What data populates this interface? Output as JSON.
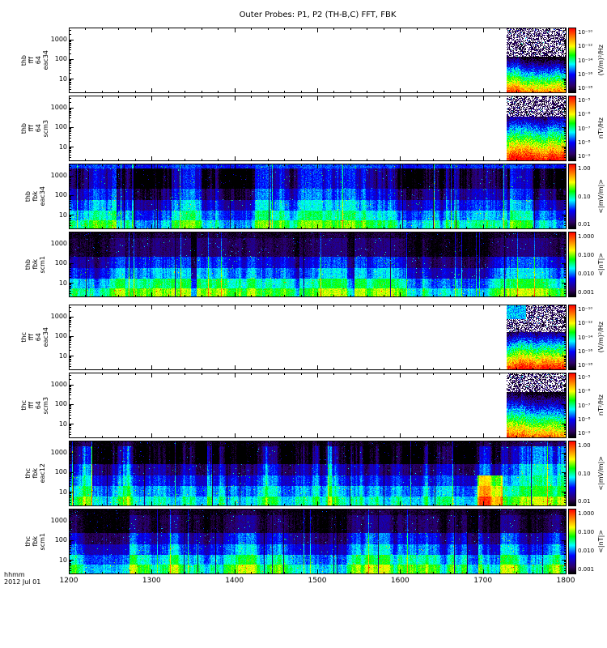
{
  "title": "Outer Probes: P1, P2 (TH-B,C) FFT, FBK",
  "footer": {
    "time_format": "hhmm",
    "date": "2012 Jul 01"
  },
  "background": "#ffffff",
  "x_axis": {
    "ticks": [
      "1200",
      "1300",
      "1400",
      "1500",
      "1600",
      "1700",
      "1800"
    ]
  },
  "y_axis": {
    "ticks": [
      "1000",
      "100",
      "10"
    ],
    "scale": "log",
    "range_hz": [
      2,
      4096
    ]
  },
  "colormap": {
    "description": "rainbow: black-purple-blue-cyan-green-yellow-orange-red, low to high",
    "stops": [
      [
        0.0,
        0,
        0,
        0
      ],
      [
        0.1,
        45,
        0,
        100
      ],
      [
        0.28,
        0,
        0,
        255
      ],
      [
        0.44,
        0,
        255,
        255
      ],
      [
        0.58,
        0,
        255,
        0
      ],
      [
        0.72,
        255,
        255,
        0
      ],
      [
        0.86,
        255,
        127,
        0
      ],
      [
        1.0,
        255,
        0,
        0
      ]
    ]
  },
  "chart_data": {
    "type": "heatmap",
    "title": "Outer Probes: P1, P2 (TH-B,C) FFT, FBK",
    "x_range": [
      "1200",
      "1800"
    ],
    "x_label": "hhmm 2012 Jul 01",
    "y_scale": "log",
    "y_ticks": [
      "1000",
      "100",
      "10"
    ],
    "panels": [
      {
        "name": "thb_fff_64_eac34",
        "label_lines": [
          "thb",
          "fff",
          "64",
          "eac34"
        ],
        "colorbar": {
          "unit": "(V/m)²/Hz",
          "ticks": [
            "10⁻¹⁰",
            "10⁻¹²",
            "10⁻¹⁴",
            "10⁻¹⁶",
            "10⁻¹⁸"
          ]
        },
        "data_coverage": "burst segment only, ~1716-1800; black speckle at high freq, intensity rising to red at lowest freq",
        "render": {
          "kind": "fft",
          "seed": 101,
          "start": 0.88,
          "darkTop": 0.45,
          "patch": false
        }
      },
      {
        "name": "thb_fff_64_scm3",
        "label_lines": [
          "thb",
          "fff",
          "64",
          "scm3"
        ],
        "colorbar": {
          "unit": "nT²/Hz",
          "ticks": [
            "10⁻⁵",
            "10⁻⁶",
            "10⁻⁷",
            "10⁻⁸",
            "10⁻⁹"
          ]
        },
        "data_coverage": "burst segment only, ~1716-1800; layered blue/cyan/green/yellow toward low freq",
        "render": {
          "kind": "fft",
          "seed": 102,
          "start": 0.88,
          "darkTop": 0.32,
          "patch": false
        }
      },
      {
        "name": "thb_fbk_eac34",
        "label_lines": [
          "thb",
          "fbk",
          "eac34"
        ],
        "colorbar": {
          "unit": "<|mV/m|>",
          "ticks": [
            "1.00",
            "0.10",
            "0.01"
          ]
        },
        "data_coverage": "full 1200-1800; solid blue top band, dark striped mid bands, green/yellow low band",
        "render": {
          "kind": "fbk",
          "seed": 303,
          "bands": [
            {
              "h": 0.07,
              "v": 0.3,
              "s": 0.04
            },
            {
              "h": 0.31,
              "v": 0.09,
              "s": 0.22
            },
            {
              "h": 0.17,
              "v": 0.2,
              "s": 0.18
            },
            {
              "h": 0.16,
              "v": 0.3,
              "s": 0.16
            },
            {
              "h": 0.15,
              "v": 0.4,
              "s": 0.14
            },
            {
              "h": 0.14,
              "v": 0.5,
              "s": 0.16
            }
          ]
        }
      },
      {
        "name": "thb_fbk_scm1",
        "label_lines": [
          "thb",
          "fbk",
          "scm1"
        ],
        "colorbar": {
          "unit": "<|nT|>",
          "ticks": [
            "1.000",
            "0.100",
            "0.010",
            "0.001"
          ]
        },
        "data_coverage": "full 1200-1800; near-black upper half, blue mid, cyan/green/yellow low bands",
        "render": {
          "kind": "fbk",
          "seed": 404,
          "bands": [
            {
              "h": 0.1,
              "v": 0.03,
              "s": 0.04
            },
            {
              "h": 0.28,
              "v": 0.06,
              "s": 0.08
            },
            {
              "h": 0.17,
              "v": 0.2,
              "s": 0.14
            },
            {
              "h": 0.16,
              "v": 0.3,
              "s": 0.14
            },
            {
              "h": 0.15,
              "v": 0.43,
              "s": 0.14
            },
            {
              "h": 0.14,
              "v": 0.54,
              "s": 0.16
            }
          ]
        }
      },
      {
        "name": "thc_fff_64_eac34",
        "label_lines": [
          "thc",
          "fff",
          "64",
          "eac34"
        ],
        "colorbar": {
          "unit": "(V/m)²/Hz",
          "ticks": [
            "10⁻¹⁰",
            "10⁻¹²",
            "10⁻¹⁴",
            "10⁻¹⁶",
            "10⁻¹⁸"
          ]
        },
        "data_coverage": "burst segment only, ~1716-1800; cyan patch at start, speckled top, red at lowest freq",
        "render": {
          "kind": "fft",
          "seed": 105,
          "start": 0.88,
          "darkTop": 0.42,
          "patch": true
        }
      },
      {
        "name": "thc_fff_64_scm3",
        "label_lines": [
          "thc",
          "fff",
          "64",
          "scm3"
        ],
        "colorbar": {
          "unit": "nT²/Hz",
          "ticks": [
            "10⁻⁵",
            "10⁻⁶",
            "10⁻⁷",
            "10⁻⁸",
            "10⁻⁹"
          ]
        },
        "data_coverage": "burst segment only, ~1716-1800; layered rainbow toward low freq",
        "render": {
          "kind": "fft",
          "seed": 106,
          "start": 0.88,
          "darkTop": 0.3,
          "patch": false
        }
      },
      {
        "name": "thc_fbk_eac12",
        "label_lines": [
          "thc",
          "fbk",
          "eac12"
        ],
        "colorbar": {
          "unit": "<|mV/m|>",
          "ticks": [
            "1.00",
            "0.10",
            "0.01"
          ]
        },
        "data_coverage": "full 1200-1800; dark striped upper bands, bright low bands, orange/red burst near 1700",
        "render": {
          "kind": "fbk",
          "seed": 707,
          "hot": [
            0.82,
            0.87
          ],
          "bands": [
            {
              "h": 0.09,
              "v": 0.05,
              "s": 0.08
            },
            {
              "h": 0.27,
              "v": 0.13,
              "s": 0.26
            },
            {
              "h": 0.17,
              "v": 0.27,
              "s": 0.2
            },
            {
              "h": 0.16,
              "v": 0.36,
              "s": 0.16
            },
            {
              "h": 0.16,
              "v": 0.45,
              "s": 0.14
            },
            {
              "h": 0.15,
              "v": 0.55,
              "s": 0.16
            }
          ]
        }
      },
      {
        "name": "thc_fbk_scm1",
        "label_lines": [
          "thc",
          "fbk",
          "scm1"
        ],
        "colorbar": {
          "unit": "<|nT|>",
          "ticks": [
            "1.000",
            "0.100",
            "0.010",
            "0.001"
          ]
        },
        "data_coverage": "full 1200-1800; near-black upper half, blue mid, cyan/green/yellow low bands",
        "render": {
          "kind": "fbk",
          "seed": 808,
          "bands": [
            {
              "h": 0.1,
              "v": 0.03,
              "s": 0.05
            },
            {
              "h": 0.27,
              "v": 0.07,
              "s": 0.1
            },
            {
              "h": 0.17,
              "v": 0.22,
              "s": 0.15
            },
            {
              "h": 0.16,
              "v": 0.32,
              "s": 0.14
            },
            {
              "h": 0.15,
              "v": 0.44,
              "s": 0.14
            },
            {
              "h": 0.15,
              "v": 0.55,
              "s": 0.17
            }
          ]
        }
      }
    ]
  }
}
